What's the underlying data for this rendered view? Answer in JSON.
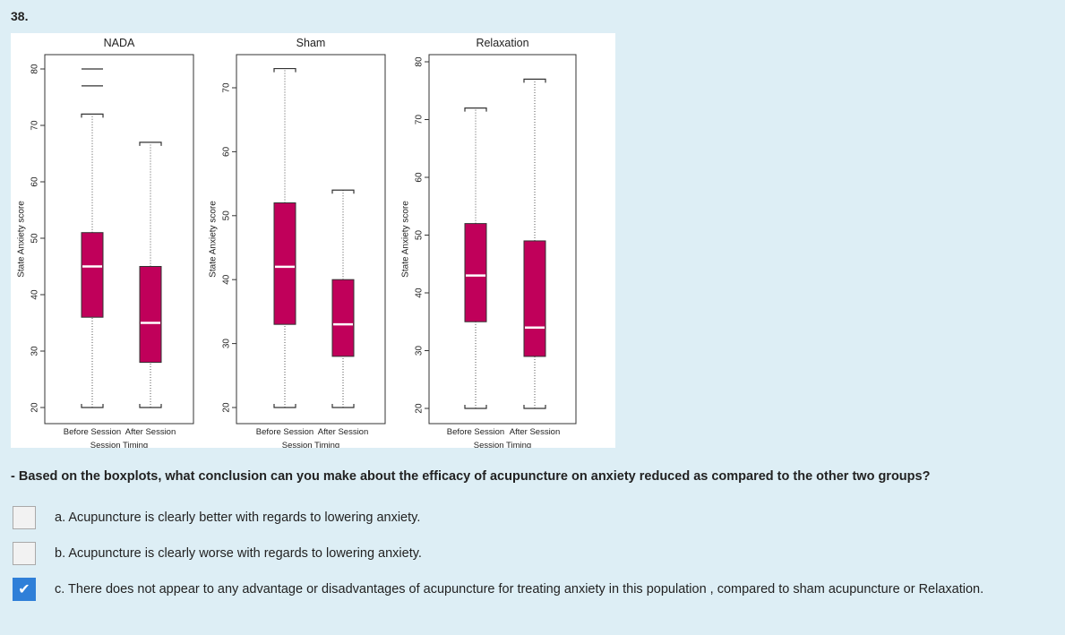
{
  "question_number": "38.",
  "question_text": "- Based on the boxplots, what conclusion can you make about the efficacy of acupuncture on anxiety reduced as compared to the other two groups?",
  "options": [
    {
      "label": "a. Acupuncture is clearly better with regards to lowering anxiety.",
      "checked": false
    },
    {
      "label": "b. Acupuncture is clearly worse with regards to lowering anxiety.",
      "checked": false
    },
    {
      "label": "c. There does not appear to any advantage or disadvantages of acupuncture for treating anxiety in this population , compared to sham acupuncture or Relaxation.",
      "checked": true
    }
  ],
  "colors": {
    "box_fill": "#c0005a",
    "median": "#ffffff",
    "checkbox_checked": "#2f7fd8",
    "background": "#ddeef5"
  },
  "chart_data": [
    {
      "type": "boxplot",
      "title": "NADA",
      "ylabel": "State Anxiety score",
      "xlabel": "Session Timing",
      "yticks": [
        20,
        30,
        40,
        50,
        60,
        70,
        80
      ],
      "ylim": [
        19,
        83
      ],
      "categories": [
        "Before Session",
        "After Session"
      ],
      "boxes": [
        {
          "category": "Before Session",
          "whisker_low": 20,
          "q1": 36,
          "median": 45,
          "q3": 51,
          "whisker_high": 72,
          "outliers": [
            77,
            80
          ]
        },
        {
          "category": "After Session",
          "whisker_low": 20,
          "q1": 28,
          "median": 35,
          "q3": 45,
          "whisker_high": 67,
          "outliers": []
        }
      ]
    },
    {
      "type": "boxplot",
      "title": "Sham",
      "ylabel": "State Anxiety score",
      "xlabel": "Session Timing",
      "yticks": [
        20,
        30,
        40,
        50,
        60,
        70
      ],
      "ylim": [
        18,
        75.5
      ],
      "categories": [
        "Before Session",
        "After Session"
      ],
      "boxes": [
        {
          "category": "Before Session",
          "whisker_low": 20,
          "q1": 33,
          "median": 42,
          "q3": 52,
          "whisker_high": 73,
          "outliers": []
        },
        {
          "category": "After Session",
          "whisker_low": 20,
          "q1": 28,
          "median": 33,
          "q3": 40,
          "whisker_high": 54,
          "outliers": []
        }
      ]
    },
    {
      "type": "boxplot",
      "title": "Relaxation",
      "ylabel": "State Anxiety score",
      "xlabel": "Session Timing",
      "yticks": [
        20,
        30,
        40,
        50,
        60,
        70,
        80
      ],
      "ylim": [
        18.5,
        82
      ],
      "categories": [
        "Before Session",
        "After Session"
      ],
      "boxes": [
        {
          "category": "Before Session",
          "whisker_low": 20,
          "q1": 35,
          "median": 43,
          "q3": 52,
          "whisker_high": 72,
          "outliers": []
        },
        {
          "category": "After Session",
          "whisker_low": 20,
          "q1": 29,
          "median": 34,
          "q3": 49,
          "whisker_high": 77,
          "outliers": []
        }
      ]
    }
  ]
}
